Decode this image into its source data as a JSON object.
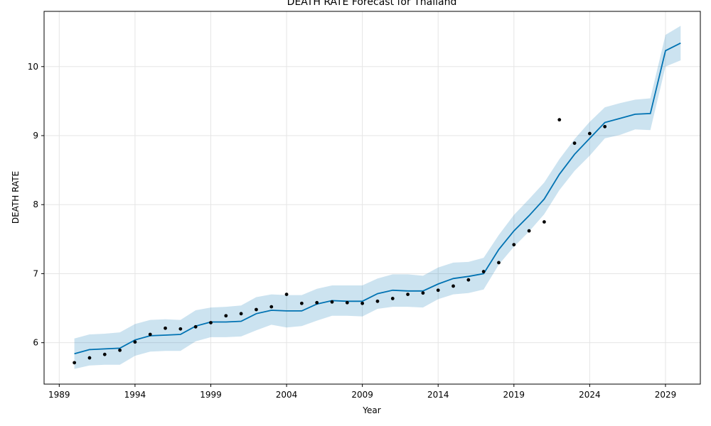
{
  "chart_data": {
    "type": "line",
    "title": "DEATH RATE Forecast for Thailand",
    "xlabel": "Year",
    "ylabel": "DEATH RATE",
    "xlim": [
      1988.0,
      2031.3
    ],
    "ylim": [
      5.4,
      10.8
    ],
    "x_ticks": [
      1989,
      1994,
      1999,
      2004,
      2009,
      2014,
      2019,
      2024,
      2029
    ],
    "y_ticks": [
      6,
      7,
      8,
      9,
      10
    ],
    "grid": true,
    "colors": {
      "forecast_line": "#0072B2",
      "uncertainty_band": "#0072B2",
      "observed_points": "#000000",
      "grid": "#e5e5e5"
    },
    "series": [
      {
        "kind": "observed",
        "x": [
          1990,
          1991,
          1992,
          1993,
          1994,
          1995,
          1996,
          1997,
          1998,
          1999,
          2000,
          2001,
          2002,
          2003,
          2004,
          2005,
          2006,
          2007,
          2008,
          2009,
          2010,
          2011,
          2012,
          2013,
          2014,
          2015,
          2016,
          2017,
          2018,
          2019,
          2020,
          2021,
          2022,
          2023,
          2024,
          2025
        ],
        "values": [
          5.71,
          5.78,
          5.83,
          5.89,
          6.01,
          6.12,
          6.21,
          6.2,
          6.23,
          6.29,
          6.39,
          6.42,
          6.48,
          6.52,
          6.7,
          6.57,
          6.58,
          6.59,
          6.58,
          6.57,
          6.6,
          6.64,
          6.7,
          6.72,
          6.76,
          6.82,
          6.91,
          7.03,
          7.16,
          7.42,
          7.62,
          7.75,
          9.23,
          8.89,
          9.03,
          9.13
        ]
      },
      {
        "kind": "forecast",
        "x": [
          1990,
          1991,
          1992,
          1993,
          1994,
          1995,
          1996,
          1997,
          1998,
          1999,
          2000,
          2001,
          2002,
          2003,
          2004,
          2005,
          2006,
          2007,
          2008,
          2009,
          2010,
          2011,
          2012,
          2013,
          2014,
          2015,
          2016,
          2017,
          2018,
          2019,
          2020,
          2021,
          2022,
          2023,
          2024,
          2025,
          2026,
          2027,
          2028,
          2029,
          2030
        ],
        "values": [
          5.84,
          5.9,
          5.91,
          5.92,
          6.04,
          6.1,
          6.11,
          6.12,
          6.24,
          6.3,
          6.3,
          6.31,
          6.42,
          6.47,
          6.46,
          6.46,
          6.56,
          6.61,
          6.6,
          6.6,
          6.71,
          6.76,
          6.75,
          6.75,
          6.85,
          6.93,
          6.96,
          7.0,
          7.35,
          7.62,
          7.84,
          8.08,
          8.44,
          8.73,
          8.96,
          9.19,
          9.25,
          9.31,
          9.32,
          10.23,
          10.34
        ],
        "lower": [
          5.62,
          5.67,
          5.68,
          5.68,
          5.81,
          5.87,
          5.88,
          5.88,
          6.02,
          6.08,
          6.08,
          6.09,
          6.18,
          6.26,
          6.22,
          6.24,
          6.32,
          6.39,
          6.39,
          6.38,
          6.49,
          6.52,
          6.52,
          6.51,
          6.63,
          6.7,
          6.72,
          6.77,
          7.13,
          7.39,
          7.61,
          7.86,
          8.21,
          8.49,
          8.71,
          8.96,
          9.01,
          9.09,
          9.08,
          10.0,
          10.09
        ],
        "upper": [
          6.06,
          6.12,
          6.13,
          6.15,
          6.27,
          6.33,
          6.34,
          6.33,
          6.47,
          6.51,
          6.52,
          6.54,
          6.66,
          6.7,
          6.69,
          6.69,
          6.78,
          6.83,
          6.83,
          6.83,
          6.93,
          6.99,
          6.99,
          6.97,
          7.09,
          7.16,
          7.17,
          7.23,
          7.56,
          7.85,
          8.08,
          8.32,
          8.66,
          8.95,
          9.2,
          9.41,
          9.47,
          9.52,
          9.54,
          10.46,
          10.59
        ]
      }
    ]
  }
}
